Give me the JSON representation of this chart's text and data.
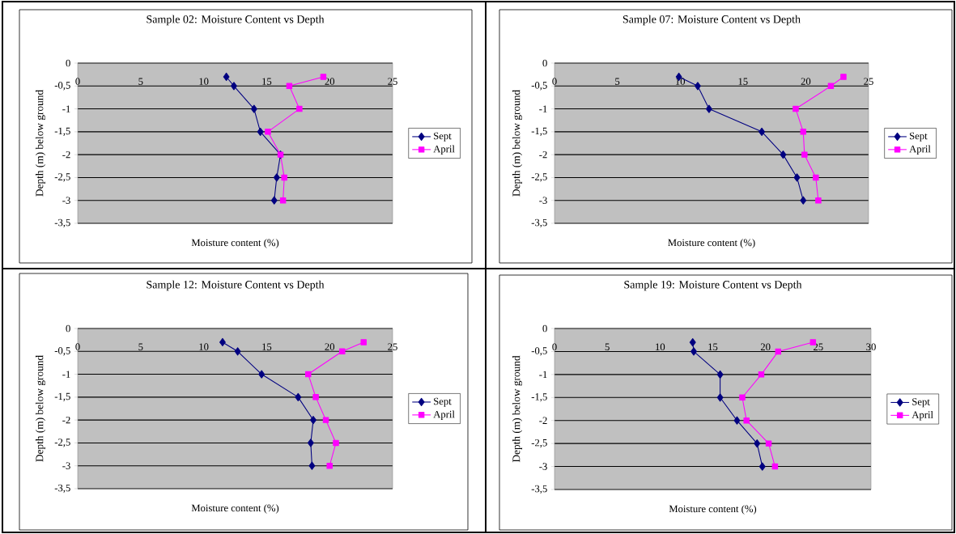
{
  "chart_data": [
    {
      "type": "line",
      "title": "Sample 02: Moisture Content vs Depth",
      "xlabel": "Moisture content (%)",
      "ylabel": "Depth (m) below ground",
      "xlim": [
        0,
        25
      ],
      "xticks": [
        0,
        5,
        10,
        15,
        20,
        25
      ],
      "ylim": [
        -3.5,
        0
      ],
      "yticks": [
        0,
        {
          "value": -0.5,
          "label": "-0,5"
        },
        -1,
        {
          "value": -1.5,
          "label": "-1,5"
        },
        -2,
        {
          "value": -2.5,
          "label": "-2,5"
        },
        -3,
        {
          "value": -3.5,
          "label": "-3,5"
        }
      ],
      "grid": "y",
      "legend": "right",
      "series": [
        {
          "name": "Sept",
          "color": "#000080",
          "marker": "diamond",
          "x": [
            11.8,
            12.4,
            14.0,
            14.5,
            16.1,
            15.8,
            15.6
          ],
          "values": [
            -0.3,
            -0.5,
            -1,
            -1.5,
            -2,
            -2.5,
            -3
          ]
        },
        {
          "name": "April",
          "color": "#ff00ff",
          "marker": "square",
          "x": [
            19.5,
            16.8,
            17.6,
            15.1,
            16.1,
            16.4,
            16.3
          ],
          "values": [
            -0.3,
            -0.5,
            -1,
            -1.5,
            -2,
            -2.5,
            -3
          ]
        }
      ]
    },
    {
      "type": "line",
      "title": "Sample 07: Moisture Content vs Depth",
      "xlabel": "Moisture content (%)",
      "ylabel": "Depth (m) below ground",
      "xlim": [
        0,
        25
      ],
      "xticks": [
        0,
        5,
        10,
        15,
        20,
        25
      ],
      "ylim": [
        -3.5,
        0
      ],
      "yticks": [
        0,
        {
          "value": -0.5,
          "label": "-0,5"
        },
        -1,
        {
          "value": -1.5,
          "label": "-1,5"
        },
        -2,
        {
          "value": -2.5,
          "label": "-2,5"
        },
        -3,
        {
          "value": -3.5,
          "label": "-3,5"
        }
      ],
      "grid": "y",
      "legend": "right",
      "series": [
        {
          "name": "Sept",
          "color": "#000080",
          "marker": "diamond",
          "x": [
            9.9,
            11.4,
            12.3,
            16.5,
            18.2,
            19.3,
            19.8
          ],
          "values": [
            -0.3,
            -0.5,
            -1,
            -1.5,
            -2,
            -2.5,
            -3
          ]
        },
        {
          "name": "April",
          "color": "#ff00ff",
          "marker": "square",
          "x": [
            23.0,
            22.0,
            19.2,
            19.8,
            19.9,
            20.8,
            21.0
          ],
          "values": [
            -0.3,
            -0.5,
            -1,
            -1.5,
            -2,
            -2.5,
            -3
          ]
        }
      ]
    },
    {
      "type": "line",
      "title": "Sample 12: Moisture Content vs Depth",
      "xlabel": "Moisture content (%)",
      "ylabel": "Depth (m) below ground",
      "xlim": [
        0,
        25
      ],
      "xticks": [
        0,
        5,
        10,
        15,
        20,
        25
      ],
      "ylim": [
        -3.5,
        0
      ],
      "yticks": [
        0,
        {
          "value": -0.5,
          "label": "-0,5"
        },
        -1,
        {
          "value": -1.5,
          "label": "-1,5"
        },
        -2,
        {
          "value": -2.5,
          "label": "-2,5"
        },
        -3,
        {
          "value": -3.5,
          "label": "-3,5"
        }
      ],
      "grid": "y",
      "legend": "right",
      "series": [
        {
          "name": "Sept",
          "color": "#000080",
          "marker": "diamond",
          "x": [
            11.5,
            12.7,
            14.6,
            17.5,
            18.7,
            18.5,
            18.6
          ],
          "values": [
            -0.3,
            -0.5,
            -1,
            -1.5,
            -2,
            -2.5,
            -3
          ]
        },
        {
          "name": "April",
          "color": "#ff00ff",
          "marker": "square",
          "x": [
            22.7,
            21.0,
            18.3,
            18.9,
            19.7,
            20.5,
            20.0
          ],
          "values": [
            -0.3,
            -0.5,
            -1,
            -1.5,
            -2,
            -2.5,
            -3
          ]
        }
      ]
    },
    {
      "type": "line",
      "title": "Sample 19: Moisture Content vs Depth",
      "xlabel": "Moisture content (%)",
      "ylabel": "Depth (m) below ground",
      "xlim": [
        0,
        30
      ],
      "xticks": [
        0,
        5,
        10,
        15,
        20,
        25,
        30
      ],
      "ylim": [
        -3.5,
        0
      ],
      "yticks": [
        0,
        {
          "value": -0.5,
          "label": "-0,5"
        },
        -1,
        {
          "value": -1.5,
          "label": "-1,5"
        },
        -2,
        {
          "value": -2.5,
          "label": "-2,5"
        },
        -3,
        {
          "value": -3.5,
          "label": "-3,5"
        }
      ],
      "grid": "y",
      "legend": "right",
      "series": [
        {
          "name": "Sept",
          "color": "#000080",
          "marker": "diamond",
          "x": [
            13.1,
            13.2,
            15.7,
            15.7,
            17.3,
            19.2,
            19.7
          ],
          "values": [
            -0.3,
            -0.5,
            -1,
            -1.5,
            -2,
            -2.5,
            -3
          ]
        },
        {
          "name": "April",
          "color": "#ff00ff",
          "marker": "square",
          "x": [
            24.5,
            21.2,
            19.6,
            17.8,
            18.2,
            20.3,
            20.9
          ],
          "values": [
            -0.3,
            -0.5,
            -1,
            -1.5,
            -2,
            -2.5,
            -3
          ]
        }
      ]
    }
  ]
}
